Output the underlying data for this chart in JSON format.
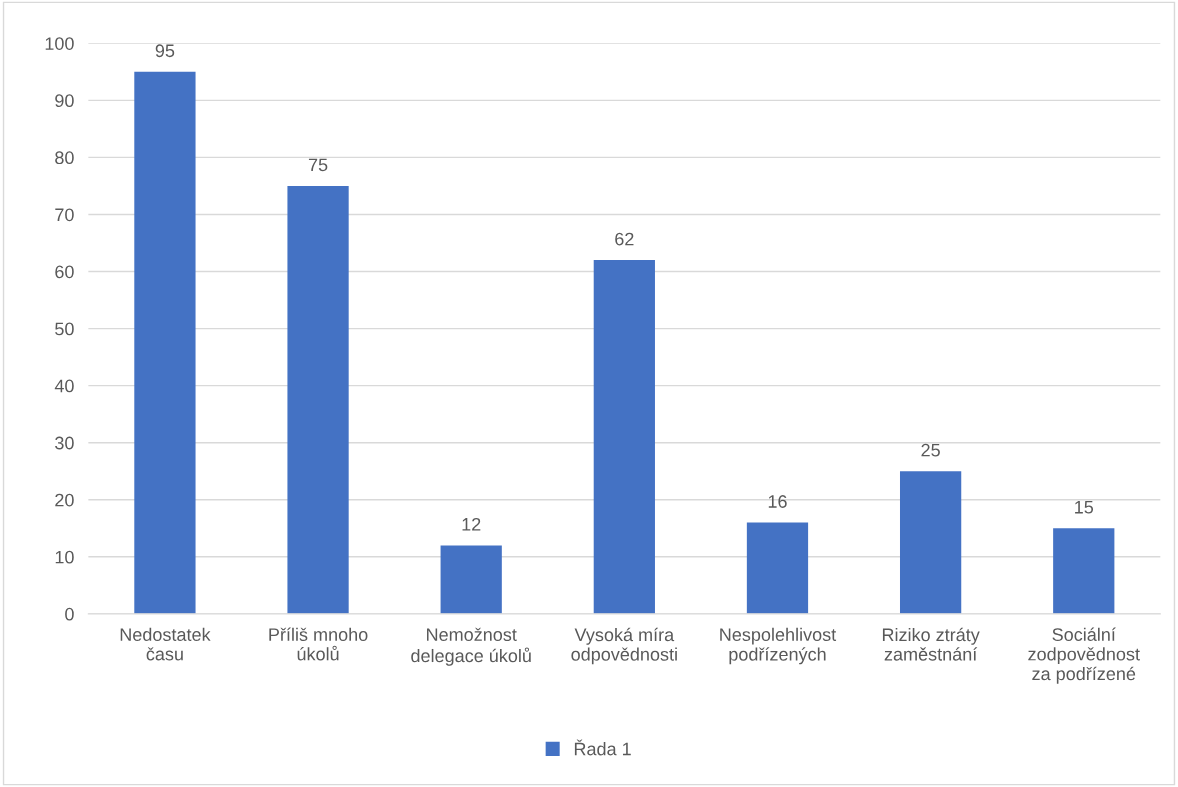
{
  "chart_data": {
    "type": "bar",
    "categories": [
      "Nedostatek\nčasu",
      "Příliš mnoho\núkolů",
      "Nemožnost\ndelegace úkolů",
      "Vysoká míra\nodpovědnosti",
      "Nespolehlivost\npodřízených",
      "Riziko ztráty\nzaměstnání",
      "Sociální\nzodpovědnost\nza podřízené"
    ],
    "series": [
      {
        "name": "Řada 1",
        "color": "#4472c4",
        "values": [
          95,
          75,
          12,
          62,
          16,
          25,
          15
        ]
      }
    ],
    "ylim": [
      0,
      100
    ],
    "yticks": [
      0,
      10,
      20,
      30,
      40,
      50,
      60,
      70,
      80,
      90,
      100
    ],
    "grid": "y",
    "legend": "bottom",
    "data_labels": true
  }
}
